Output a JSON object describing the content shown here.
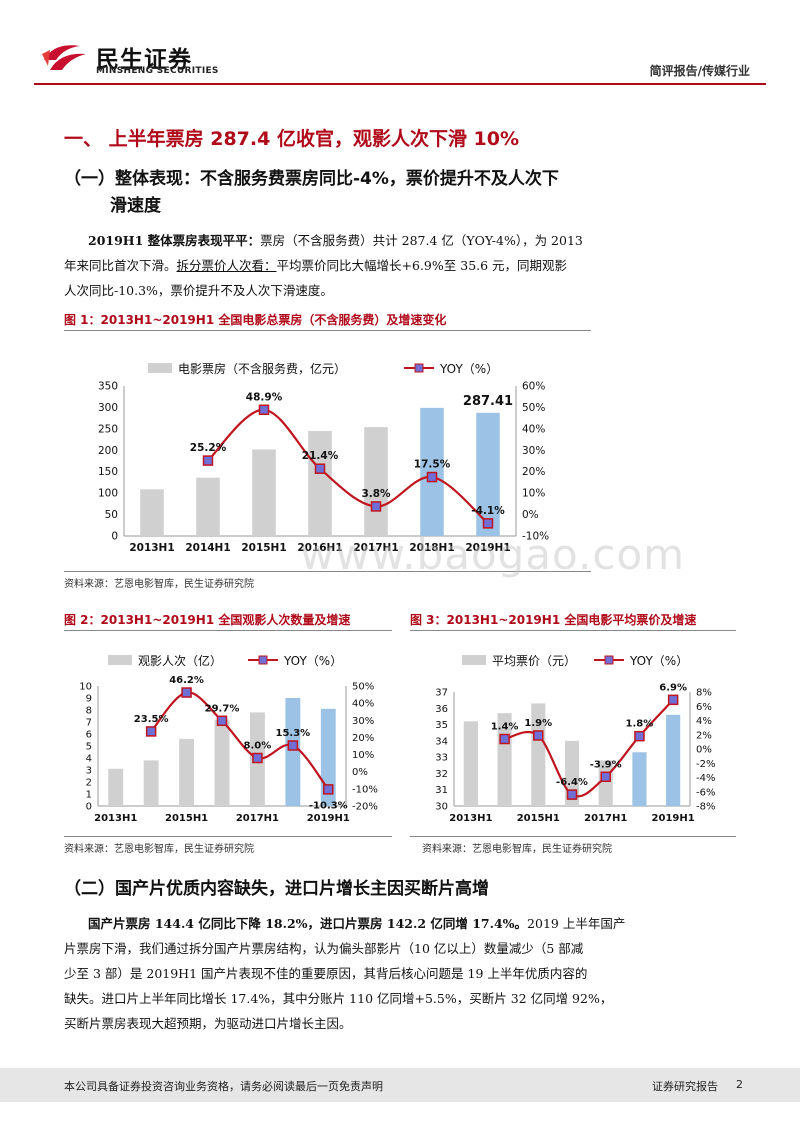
{
  "header": {
    "logo_cn": "民生证券",
    "logo_en": "MINSHENG SECURITIES",
    "report_type": "简评报告/传媒行业",
    "brand_color": "#b00a1a"
  },
  "section1": {
    "title": "一、 上半年票房 287.4 亿收官，观影人次下滑 10%",
    "sub1_line1": "（一）整体表现：不含服务费票房同比-4%，票价提升不及人次下",
    "sub1_line2": "滑速度",
    "para1": {
      "bold": "2019H1 整体票房表现平平：",
      "text1": "票房（不含服务费）共计 287.4 亿（YOY-4%），为 2013",
      "text2": "年来同比首次下滑。",
      "underline": "拆分票价人次看：",
      "text3": "平均票价同比大幅增长+6.9%至 35.6 元，同期观影",
      "text4": "人次同比-10.3%，票价提升不及人次下滑速度。"
    }
  },
  "fig1": {
    "title": "图 1：2013H1~2019H1 全国电影总票房（不含服务费）及增速变化",
    "source": "资料来源：艺恩电影智库，民生证券研究院"
  },
  "fig2": {
    "title": "图 2：2013H1~2019H1 全国观影人次数量及增速",
    "source": "资料来源：艺恩电影智库，民生证券研究院"
  },
  "fig3": {
    "title": "图 3：2013H1~2019H1 全国电影平均票价及增速",
    "source": "资料来源：艺恩电影智库，民生证券研究院"
  },
  "section2": {
    "title": "（二）国产片优质内容缺失，进口片增长主因买断片高增",
    "para_bold": "国产片票房 144.4 亿同比下降 18.2%，进口片票房 142.2 亿同增 17.4%。",
    "para_l1_tail": "2019 上半年国产",
    "para_l2": "片票房下滑，我们通过拆分国产片票房结构，认为偏头部影片（10 亿以上）数量减少（5 部减",
    "para_l3": "少至 3 部）是 2019H1 国产片表现不佳的重要原因，其背后核心问题是 19 上半年优质内容的",
    "para_l4": "缺失。进口片上半年同比增长 17.4%，其中分账片 110 亿同增+5.5%，买断片 32 亿同增 92%，",
    "para_l5": "买断片票房表现大超预期，为驱动进口片增长主因。"
  },
  "watermark": "www.baogao.com",
  "footer": {
    "left": "本公司具备证券投资咨询业务资格，请务必阅读最后一页免责声明",
    "right": "证券研究报告",
    "page": "2"
  },
  "chart_data": [
    {
      "type": "bar",
      "categories": [
        "2013H1",
        "2014H1",
        "2015H1",
        "2016H1",
        "2017H1",
        "2018H1",
        "2019H1"
      ],
      "series": [
        {
          "name": "电影票房（不含服务费，亿元）",
          "type": "bar",
          "axis": "left",
          "values": [
            109,
            136,
            202,
            245,
            254,
            299,
            287.41
          ],
          "colors": [
            "#d0d0d0",
            "#d0d0d0",
            "#d0d0d0",
            "#d0d0d0",
            "#d0d0d0",
            "#9cc3e6",
            "#9cc3e6"
          ]
        },
        {
          "name": "YOY（%）",
          "type": "line",
          "axis": "right",
          "values": [
            null,
            25.2,
            48.9,
            21.4,
            3.8,
            17.5,
            -4.1
          ],
          "labels": [
            "",
            "25.2%",
            "48.9%",
            "21.4%",
            "3.8%",
            "17.5%",
            "-4.1%"
          ]
        }
      ],
      "bar_labels": [
        "",
        "",
        "",
        "",
        "",
        "",
        "287.41"
      ],
      "left_ticks": [
        "0",
        "50",
        "100",
        "150",
        "200",
        "250",
        "300",
        "350"
      ],
      "right_ticks": [
        "-10%",
        "0%",
        "10%",
        "20%",
        "30%",
        "40%",
        "50%",
        "60%"
      ],
      "ylim": [
        0,
        350
      ],
      "y2lim": [
        -10,
        60
      ],
      "legend": "top"
    },
    {
      "type": "bar",
      "categories": [
        "2013H1",
        "2014H1",
        "2015H1",
        "2016H1",
        "2017H1",
        "2018H1",
        "2019H1"
      ],
      "x_tick_labels": [
        "2013H1",
        "",
        "2015H1",
        "",
        "2017H1",
        "",
        "2019H1"
      ],
      "series": [
        {
          "name": "观影人次（亿）",
          "type": "bar",
          "axis": "left",
          "values": [
            3.1,
            3.8,
            5.6,
            7.2,
            7.8,
            9.0,
            8.1
          ],
          "colors": [
            "#d0d0d0",
            "#d0d0d0",
            "#d0d0d0",
            "#d0d0d0",
            "#d0d0d0",
            "#9cc3e6",
            "#9cc3e6"
          ]
        },
        {
          "name": "YOY（%）",
          "type": "line",
          "axis": "right",
          "values": [
            null,
            23.5,
            46.2,
            29.7,
            8.0,
            15.3,
            -10.3
          ],
          "labels": [
            "",
            "23.5%",
            "46.2%",
            "29.7%",
            "8.0%",
            "15.3%",
            "-10.3%"
          ]
        }
      ],
      "left_ticks": [
        "0",
        "1",
        "2",
        "3",
        "4",
        "5",
        "6",
        "7",
        "8",
        "9",
        "10"
      ],
      "right_ticks": [
        "-20%",
        "-10%",
        "0%",
        "10%",
        "20%",
        "30%",
        "40%",
        "50%"
      ],
      "ylim": [
        0,
        10
      ],
      "y2lim": [
        -20,
        50
      ],
      "legend": "top"
    },
    {
      "type": "bar",
      "categories": [
        "2013H1",
        "2014H1",
        "2015H1",
        "2016H1",
        "2017H1",
        "2018H1",
        "2019H1"
      ],
      "x_tick_labels": [
        "2013H1",
        "",
        "2015H1",
        "",
        "2017H1",
        "",
        "2019H1"
      ],
      "series": [
        {
          "name": "平均票价（元）",
          "type": "bar",
          "axis": "left",
          "values": [
            35.2,
            35.7,
            36.3,
            34.0,
            32.8,
            33.3,
            35.6
          ],
          "colors": [
            "#d0d0d0",
            "#d0d0d0",
            "#d0d0d0",
            "#d0d0d0",
            "#d0d0d0",
            "#9cc3e6",
            "#9cc3e6"
          ]
        },
        {
          "name": "YOY（%）",
          "type": "line",
          "axis": "right",
          "values": [
            null,
            1.4,
            1.9,
            -6.4,
            -3.9,
            1.8,
            6.9
          ],
          "labels": [
            "",
            "1.4%",
            "1.9%",
            "-6.4%",
            "-3.9%",
            "1.8%",
            "6.9%"
          ]
        }
      ],
      "left_ticks": [
        "30",
        "31",
        "32",
        "33",
        "34",
        "35",
        "36",
        "37"
      ],
      "right_ticks": [
        "-8%",
        "-6%",
        "-4%",
        "-2%",
        "0%",
        "2%",
        "4%",
        "6%",
        "8%"
      ],
      "ylim": [
        30,
        37
      ],
      "y2lim": [
        -8,
        8
      ],
      "legend": "top"
    }
  ]
}
